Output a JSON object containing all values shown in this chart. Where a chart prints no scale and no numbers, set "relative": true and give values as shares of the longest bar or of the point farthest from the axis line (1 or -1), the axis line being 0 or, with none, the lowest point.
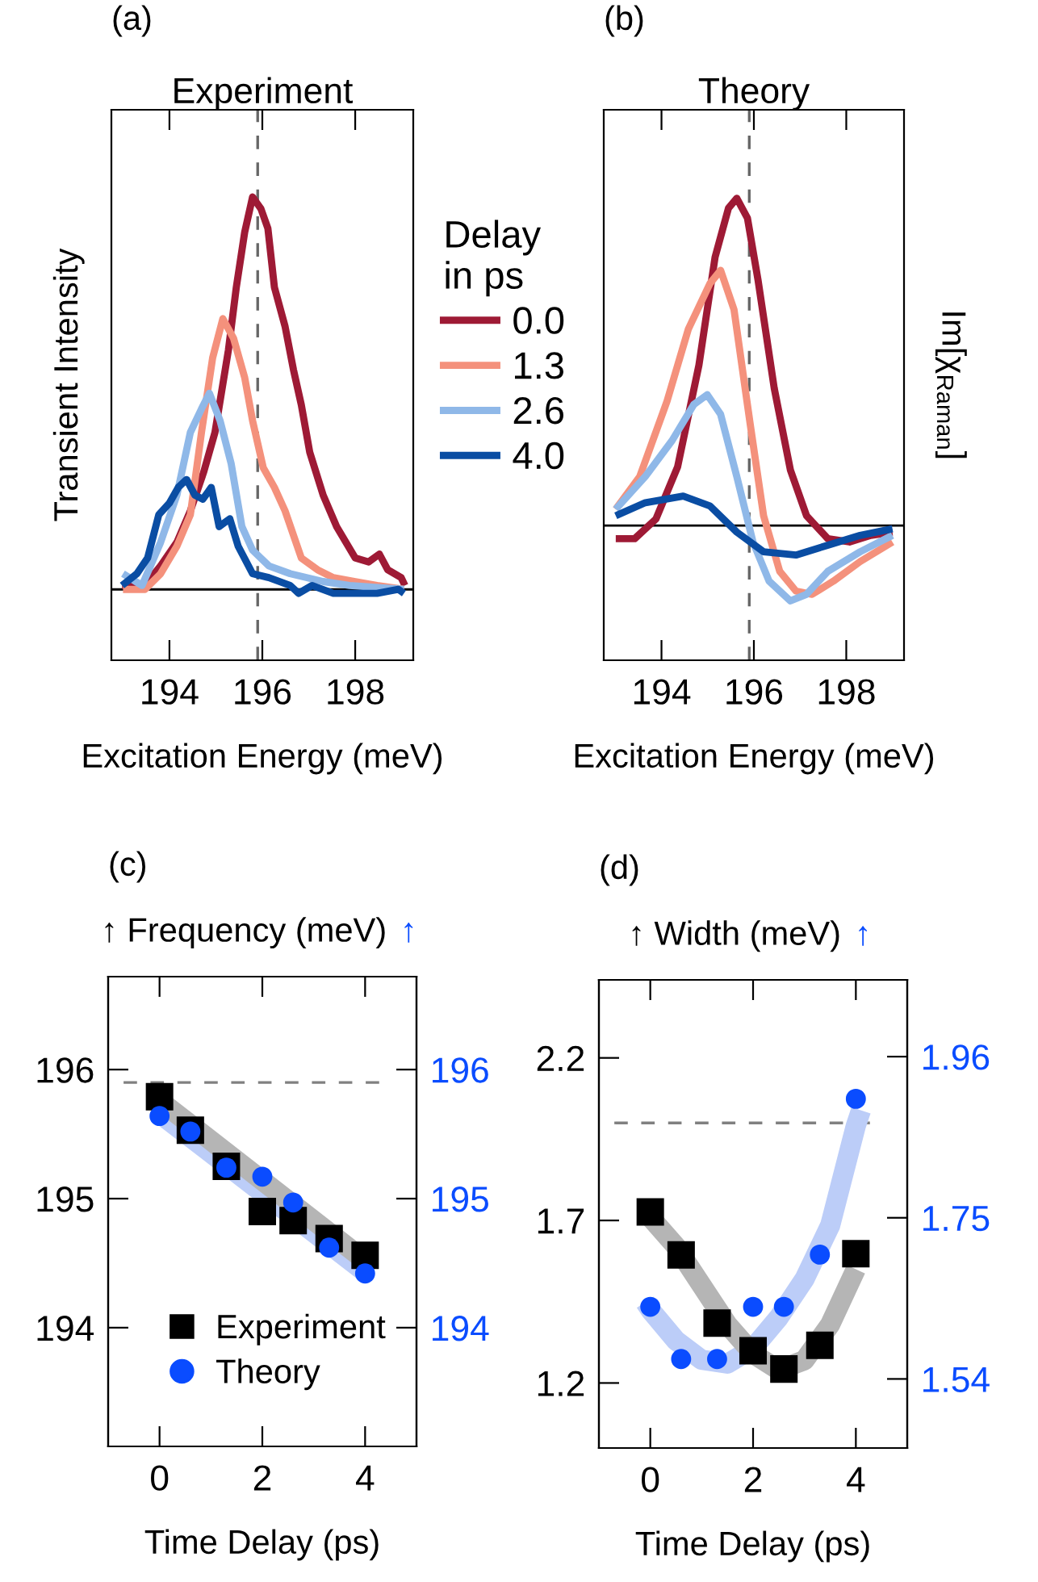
{
  "chart_data": [
    {
      "type": "line",
      "title": "Experiment",
      "annotations": [
        "(a)"
      ],
      "xlabel": "Excitation Energy (meV)",
      "ylabel": "Transient Intensity",
      "relative": true,
      "xlim": [
        192.75,
        199.25
      ],
      "xticks": [
        194,
        196,
        198
      ],
      "legend": "right",
      "legend_title": "Delay\nin ps",
      "ref_lines": [
        {
          "axis": "x",
          "value": 195.9,
          "color": "#666666",
          "line_style": "dashed"
        },
        {
          "axis": "y",
          "value": 0,
          "color": "#000000",
          "line_style": "solid"
        }
      ],
      "series": [
        {
          "name": "0.0",
          "color": "#9e1a35",
          "x": [
            192.98,
            193.47,
            193.81,
            194.16,
            194.45,
            194.74,
            194.98,
            195.27,
            195.44,
            195.62,
            195.79,
            195.97,
            196.12,
            196.26,
            196.49,
            196.67,
            196.84,
            197.02,
            197.31,
            197.6,
            198.0,
            198.29,
            198.52,
            198.7,
            198.99,
            199.07
          ],
          "values": [
            0.01,
            0.01,
            0.06,
            0.12,
            0.2,
            0.3,
            0.4,
            0.61,
            0.77,
            0.91,
            1.0,
            0.97,
            0.92,
            0.77,
            0.67,
            0.56,
            0.47,
            0.35,
            0.24,
            0.16,
            0.08,
            0.07,
            0.09,
            0.05,
            0.03,
            0.01
          ]
        },
        {
          "name": "1.3",
          "color": "#f4917c",
          "x": [
            193.0,
            193.47,
            193.81,
            194.16,
            194.45,
            194.69,
            194.93,
            195.15,
            195.38,
            195.62,
            195.79,
            196.02,
            196.26,
            196.49,
            196.84,
            197.19,
            197.53,
            198.0,
            198.47,
            199.05
          ],
          "values": [
            0.0,
            0.0,
            0.04,
            0.11,
            0.19,
            0.4,
            0.59,
            0.69,
            0.64,
            0.54,
            0.43,
            0.31,
            0.26,
            0.2,
            0.08,
            0.05,
            0.03,
            0.02,
            0.01,
            0.0
          ]
        },
        {
          "name": "2.6",
          "color": "#8fb8e8",
          "x": [
            193.0,
            193.41,
            193.81,
            194.16,
            194.45,
            194.69,
            194.86,
            195.09,
            195.33,
            195.56,
            195.79,
            196.14,
            196.6,
            197.31,
            197.88,
            199.05
          ],
          "values": [
            0.04,
            0.01,
            0.12,
            0.24,
            0.4,
            0.46,
            0.5,
            0.43,
            0.32,
            0.16,
            0.1,
            0.06,
            0.04,
            0.02,
            0.01,
            0.0
          ]
        },
        {
          "name": "4.0",
          "color": "#0a4da3",
          "x": [
            192.98,
            193.3,
            193.53,
            193.77,
            194.0,
            194.19,
            194.37,
            194.55,
            194.72,
            194.9,
            195.07,
            195.3,
            195.48,
            195.79,
            196.14,
            196.6,
            196.78,
            197.07,
            197.53,
            198.0,
            198.47,
            198.93,
            199.05
          ],
          "values": [
            0.01,
            0.04,
            0.08,
            0.19,
            0.22,
            0.26,
            0.28,
            0.24,
            0.23,
            0.26,
            0.16,
            0.18,
            0.11,
            0.04,
            0.03,
            0.01,
            -0.01,
            0.01,
            -0.01,
            -0.01,
            -0.01,
            0.0,
            -0.01
          ]
        }
      ]
    },
    {
      "type": "line",
      "title": "Theory",
      "annotations": [
        "(b)"
      ],
      "xlabel": "Excitation Energy (meV)",
      "ylabel": "Im[χ$_{Raman}$]",
      "relative": true,
      "xlim": [
        192.75,
        199.25
      ],
      "xticks": [
        194,
        196,
        198
      ],
      "ref_lines": [
        {
          "axis": "x",
          "value": 195.9,
          "color": "#666666",
          "line_style": "dashed"
        },
        {
          "axis": "y",
          "value": 0,
          "color": "#000000",
          "line_style": "solid"
        }
      ],
      "series": [
        {
          "color": "#9e1a35",
          "x": [
            193.01,
            193.42,
            193.88,
            194.35,
            194.81,
            195.16,
            195.45,
            195.63,
            195.86,
            196.09,
            196.44,
            196.79,
            197.14,
            197.6,
            198.07,
            198.53,
            199.0
          ],
          "values": [
            -0.04,
            -0.04,
            0.02,
            0.18,
            0.49,
            0.82,
            0.97,
            1.0,
            0.94,
            0.75,
            0.42,
            0.17,
            0.03,
            -0.04,
            -0.05,
            -0.03,
            -0.02
          ]
        },
        {
          "color": "#f4917c",
          "x": [
            193.01,
            193.53,
            194.12,
            194.58,
            195.05,
            195.28,
            195.57,
            195.92,
            196.21,
            196.56,
            196.91,
            197.26,
            197.72,
            198.3,
            199.0
          ],
          "values": [
            0.05,
            0.15,
            0.38,
            0.6,
            0.74,
            0.78,
            0.66,
            0.31,
            0.03,
            -0.14,
            -0.2,
            -0.21,
            -0.17,
            -0.11,
            -0.05
          ]
        },
        {
          "color": "#8fb8e8",
          "x": [
            193.01,
            193.65,
            194.23,
            194.7,
            194.99,
            195.28,
            195.63,
            195.98,
            196.33,
            196.79,
            197.14,
            197.6,
            198.3,
            199.0
          ],
          "values": [
            0.05,
            0.15,
            0.26,
            0.37,
            0.4,
            0.34,
            0.15,
            -0.05,
            -0.17,
            -0.23,
            -0.21,
            -0.14,
            -0.08,
            -0.03
          ]
        },
        {
          "color": "#0a4da3",
          "x": [
            193.01,
            193.65,
            194.47,
            195.05,
            195.63,
            196.21,
            196.91,
            197.6,
            198.3,
            199.0
          ],
          "values": [
            0.03,
            0.07,
            0.09,
            0.06,
            -0.02,
            -0.08,
            -0.09,
            -0.06,
            -0.03,
            -0.01
          ]
        }
      ]
    },
    {
      "type": "scatter",
      "annotations": [
        "(c)"
      ],
      "xlabel": "Time Delay (ps)",
      "ylabel": "↑ Frequency (meV)",
      "y2label": "↑",
      "xlim": [
        -1,
        5
      ],
      "xticks": [
        0,
        2,
        4
      ],
      "ylim": [
        193.08,
        196.72
      ],
      "yticks": [
        194,
        195,
        196
      ],
      "y2lim": [
        193.08,
        196.72
      ],
      "y2ticks": [
        194,
        195,
        196
      ],
      "legend": "bottom right",
      "ref_lines": [
        {
          "axis": "y",
          "value": 195.9,
          "color": "#808080",
          "line_style": "dashed"
        }
      ],
      "series": [
        {
          "type": "line",
          "color": "#bccdf8",
          "axis": "y2",
          "x": [
            0,
            4
          ],
          "values": [
            195.66,
            194.43
          ]
        },
        {
          "type": "line",
          "color": "#b5b5b5",
          "x": [
            0,
            4
          ],
          "values": [
            195.76,
            194.52
          ]
        },
        {
          "name": "Experiment",
          "color": "#000000",
          "marker": "square",
          "x": [
            0,
            0.6,
            1.3,
            2,
            2.6,
            3.3,
            4
          ],
          "values": [
            195.79,
            195.53,
            195.25,
            194.9,
            194.83,
            194.69,
            194.56
          ]
        },
        {
          "name": "Theory",
          "color": "#0a4cff",
          "marker": "circle",
          "axis": "y2",
          "x": [
            0,
            0.6,
            1.3,
            2,
            2.6,
            3.3,
            4
          ],
          "values": [
            195.64,
            195.52,
            195.24,
            195.17,
            194.97,
            194.62,
            194.42
          ]
        }
      ]
    },
    {
      "type": "scatter",
      "annotations": [
        "(d)"
      ],
      "xlabel": "Time Delay (ps)",
      "ylabel": "↑ Width (meV)",
      "y2label": "↑",
      "xlim": [
        -1,
        5
      ],
      "xticks": [
        0,
        2,
        4
      ],
      "ylim": [
        1.0,
        2.44
      ],
      "yticks": [
        1.2,
        1.7,
        2.2
      ],
      "y2lim": [
        1.45,
        2.06
      ],
      "y2ticks": [
        1.54,
        1.75,
        1.96
      ],
      "ref_lines": [
        {
          "axis": "y",
          "value": 2.0,
          "color": "#808080",
          "line_style": "dashed"
        }
      ],
      "series": [
        {
          "type": "line",
          "color": "#bccdf8",
          "axis": "y2",
          "x": [
            -0.1,
            0,
            0.5,
            1,
            1.5,
            2,
            2.5,
            3,
            3.5,
            4,
            4.1
          ],
          "values": [
            1.64,
            1.63,
            1.59,
            1.565,
            1.56,
            1.58,
            1.62,
            1.67,
            1.74,
            1.87,
            1.89
          ]
        },
        {
          "type": "line",
          "color": "#b5b5b5",
          "x": [
            0,
            0.5,
            1,
            1.5,
            2,
            2.5,
            3,
            3.5,
            4
          ],
          "values": [
            1.71,
            1.62,
            1.5,
            1.38,
            1.29,
            1.24,
            1.27,
            1.38,
            1.55
          ]
        },
        {
          "color": "#000000",
          "marker": "square",
          "x": [
            0,
            0.6,
            1.3,
            2,
            2.6,
            3.3,
            4
          ],
          "values": [
            1.726,
            1.594,
            1.384,
            1.299,
            1.243,
            1.316,
            1.598
          ]
        },
        {
          "color": "#0a4cff",
          "marker": "circle",
          "axis": "y2",
          "x": [
            0,
            0.6,
            1.3,
            2,
            2.6,
            3.3,
            4
          ],
          "values": [
            1.634,
            1.566,
            1.566,
            1.634,
            1.634,
            1.702,
            1.905
          ]
        }
      ]
    }
  ]
}
